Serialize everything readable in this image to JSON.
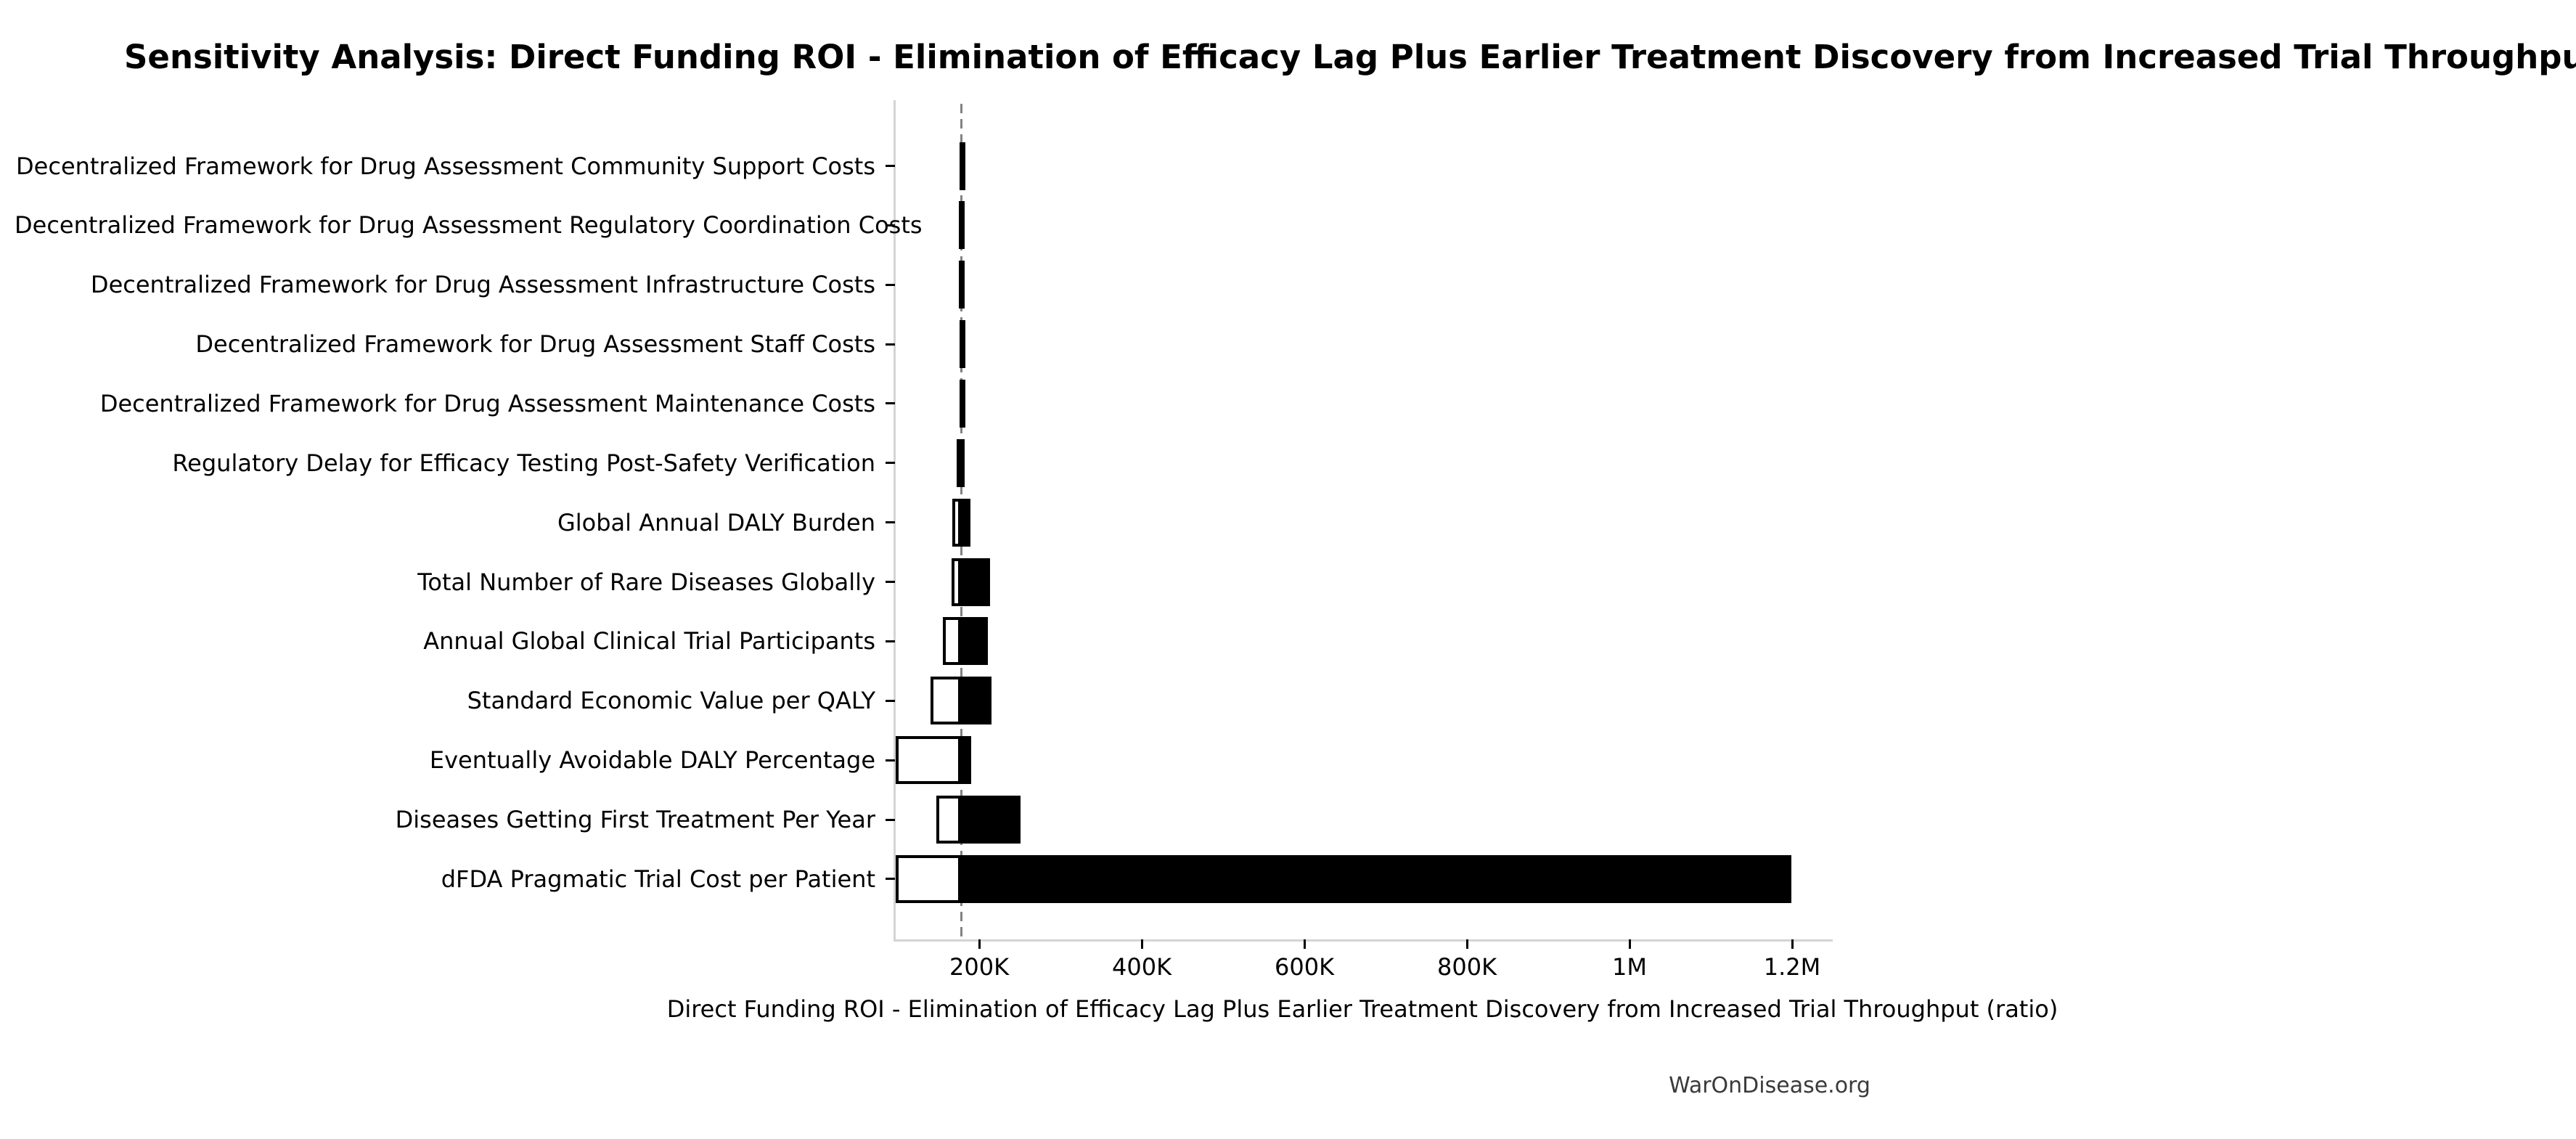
{
  "watermark": "WarOnDisease.org",
  "chart_data": {
    "type": "bar",
    "orientation": "horizontal",
    "variant": "tornado-sensitivity",
    "title": "Sensitivity Analysis: Direct Funding ROI - Elimination of Efficacy Lag Plus Earlier Treatment Discovery from Increased Trial Throughput",
    "xlabel": "Direct Funding ROI - Elimination of Efficacy Lag Plus Earlier Treatment Discovery from Increased Trial Throughput (ratio)",
    "grid": false,
    "legend": "none",
    "baseline_value": 177700,
    "baseline_line": {
      "style": "dashed",
      "color": "#828282"
    },
    "xlim": [
      96400,
      1247300
    ],
    "x_ticks": [
      {
        "value": 200000,
        "label": "200K"
      },
      {
        "value": 400000,
        "label": "400K"
      },
      {
        "value": 600000,
        "label": "600K"
      },
      {
        "value": 800000,
        "label": "800K"
      },
      {
        "value": 1000000,
        "label": "1M"
      },
      {
        "value": 1200000,
        "label": "1.2M"
      }
    ],
    "bar_style": {
      "low_fill": "#ffffff",
      "low_edge": "#000000",
      "high_fill": "#000000"
    },
    "rows": [
      {
        "label": "Decentralized Framework for Drug Assessment Community Support Costs",
        "low": 175500,
        "high": 181500
      },
      {
        "label": "Decentralized Framework for Drug Assessment Regulatory Coordination Costs",
        "low": 175000,
        "high": 182000
      },
      {
        "label": "Decentralized Framework for Drug Assessment Infrastructure Costs",
        "low": 175000,
        "high": 182000
      },
      {
        "label": "Decentralized Framework for Drug Assessment Staff Costs",
        "low": 175500,
        "high": 181500
      },
      {
        "label": "Decentralized Framework for Drug Assessment Maintenance Costs",
        "low": 176000,
        "high": 181000
      },
      {
        "label": "Regulatory Delay for Efficacy Testing Post-Safety Verification",
        "low": 172500,
        "high": 182500
      },
      {
        "label": "Global Annual DALY Burden",
        "low": 167000,
        "high": 189000
      },
      {
        "label": "Total Number of Rare Diseases Globally",
        "low": 166000,
        "high": 213000
      },
      {
        "label": "Annual Global Clinical Trial Participants",
        "low": 155500,
        "high": 211000
      },
      {
        "label": "Standard Economic Value per QALY",
        "low": 140000,
        "high": 215000
      },
      {
        "label": "Eventually Avoidable DALY Percentage",
        "low": 97500,
        "high": 190000
      },
      {
        "label": "Diseases Getting First Treatment Per Year",
        "low": 147000,
        "high": 251000
      },
      {
        "label": "dFDA Pragmatic Trial Cost per Patient",
        "low": 97500,
        "high": 1199500
      }
    ]
  }
}
